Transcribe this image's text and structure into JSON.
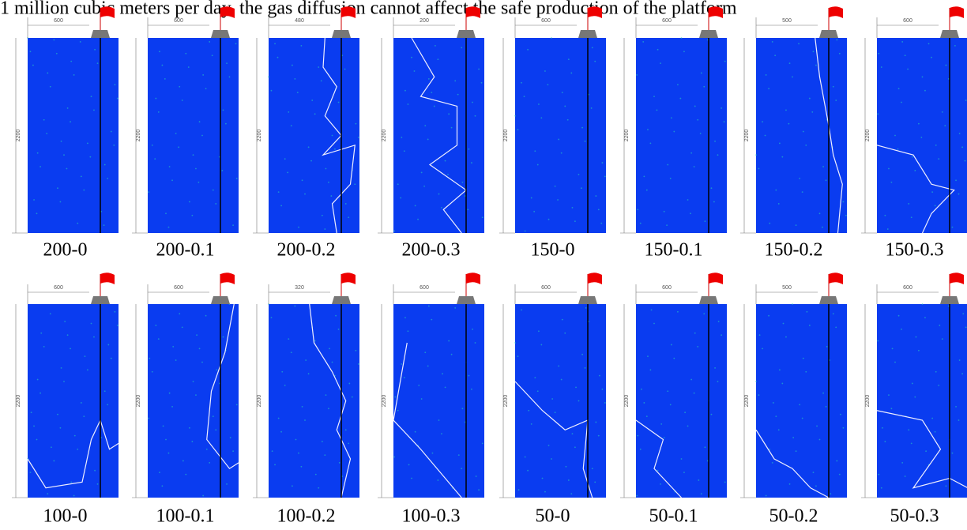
{
  "caption_line": "1 million cubic meters per day, the gas diffusion cannot affect the safe production of the platform",
  "panels": [
    {
      "width_label": 600,
      "height_label": 2200,
      "caption": "200-0"
    },
    {
      "width_label": 600,
      "height_label": 2200,
      "caption": "200-0.1"
    },
    {
      "width_label": 480,
      "height_label": 2200,
      "caption": "200-0.2"
    },
    {
      "width_label": 200,
      "height_label": 2200,
      "caption": "200-0.3"
    },
    {
      "width_label": 600,
      "height_label": 2200,
      "caption": "150-0"
    },
    {
      "width_label": 600,
      "height_label": 2200,
      "caption": "150-0.1"
    },
    {
      "width_label": 500,
      "height_label": 2200,
      "caption": "150-0.2"
    },
    {
      "width_label": 600,
      "height_label": 2200,
      "caption": "150-0.3"
    },
    {
      "width_label": 600,
      "height_label": 2200,
      "caption": "100-0"
    },
    {
      "width_label": 600,
      "height_label": 2200,
      "caption": "100-0.1"
    },
    {
      "width_label": 320,
      "height_label": 2200,
      "caption": "100-0.2"
    },
    {
      "width_label": 600,
      "height_label": 2200,
      "caption": "100-0.3"
    },
    {
      "width_label": 600,
      "height_label": 2200,
      "caption": "50-0"
    },
    {
      "width_label": 600,
      "height_label": 2200,
      "caption": "50-0.1"
    },
    {
      "width_label": 500,
      "height_label": 2200,
      "caption": "50-0.2"
    },
    {
      "width_label": 600,
      "height_label": 2200,
      "caption": "50-0.3"
    }
  ]
}
